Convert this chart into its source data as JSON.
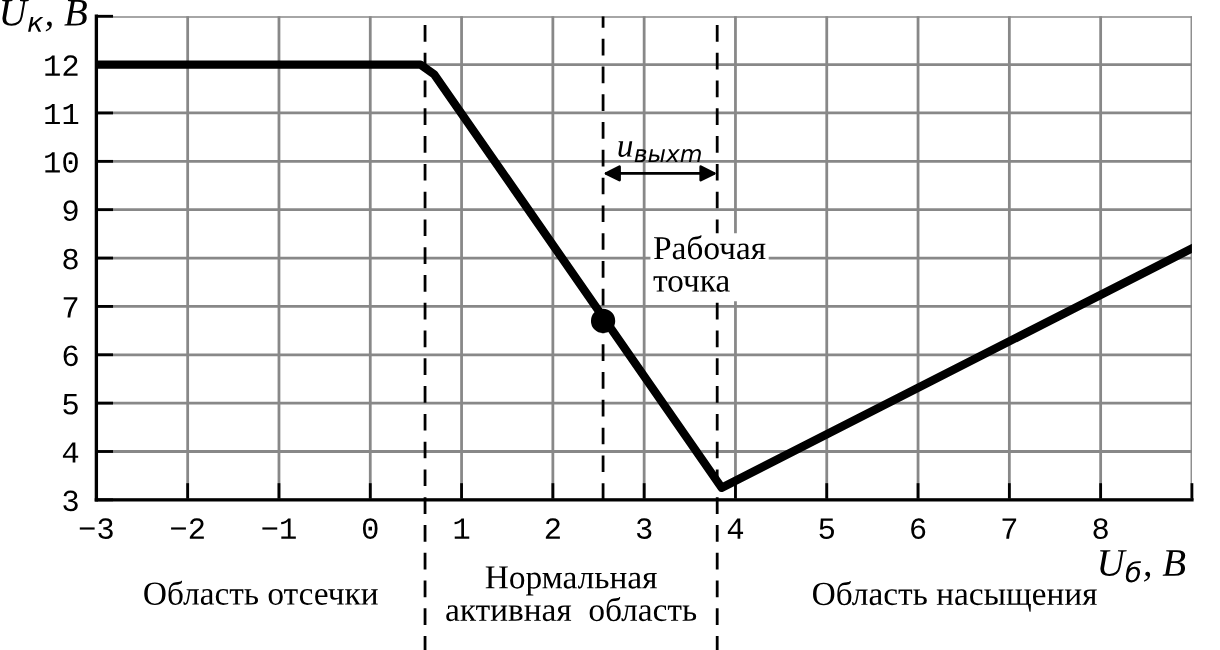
{
  "chart_data": {
    "type": "line",
    "xlabel": "U$_{б}$, В",
    "ylabel": "U$_{к}$, В",
    "series": [
      {
        "color": "#000000",
        "x": [
          -3,
          0.55,
          0.7,
          3.85,
          9
        ],
        "values": [
          12,
          12,
          11.8,
          3.25,
          8.2
        ]
      },
      {
        "type": "scatter",
        "color": "#000000",
        "x": [
          2.55
        ],
        "values": [
          6.7
        ],
        "marker": "circle"
      }
    ],
    "xlim": [
      -3,
      9
    ],
    "ylim": [
      3,
      13
    ],
    "xticks": [
      -3,
      -2,
      -1,
      0,
      1,
      2,
      3,
      4,
      5,
      6,
      7,
      8,
      {
        "value": 9,
        "label": null
      }
    ],
    "yticks": [
      3,
      4,
      5,
      6,
      7,
      8,
      9,
      10,
      11,
      12,
      {
        "value": 13,
        "label": null
      }
    ],
    "grid": true,
    "ref_lines": [
      {
        "axis": "x",
        "value": 0.6,
        "label": null,
        "color": "#000000",
        "line_style": "dashed"
      },
      {
        "axis": "x",
        "value": 2.55,
        "label": null,
        "color": "#000000",
        "line_style": "dashed"
      },
      {
        "axis": "x",
        "value": 3.8,
        "label": null,
        "color": "#000000",
        "line_style": "dashed"
      }
    ],
    "annotations": [
      {
        "text": "Рабочая точка",
        "x": 2.55,
        "y": 6.7
      },
      {
        "text": "u$_{выхm}$",
        "x": 2.55,
        "y": 9.75
      },
      "Область отсечки",
      "Нормальная активная  область",
      "Область насыщения"
    ]
  }
}
